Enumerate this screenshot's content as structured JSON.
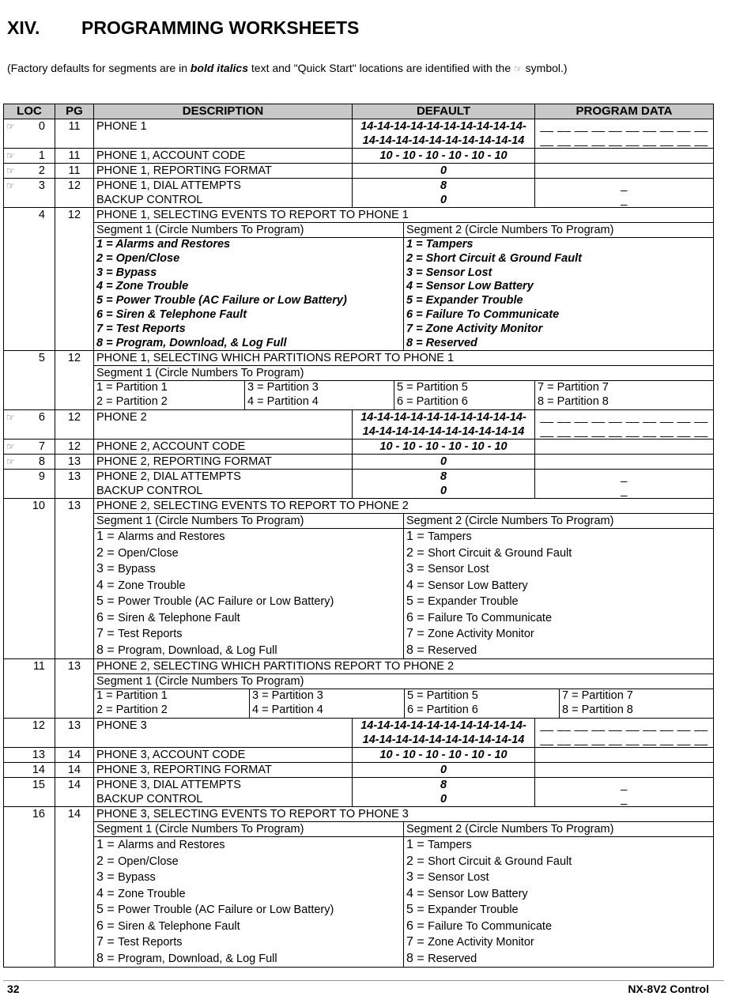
{
  "heading": {
    "number": "XIV.",
    "title": "PROGRAMMING WORKSHEETS"
  },
  "subtitle": {
    "part1": "(Factory defaults for segments are in ",
    "bold": "bold italics",
    "part2": " text and \"Quick Start\" locations are identified with the ",
    "symbol": "☞",
    "part3": " symbol.)"
  },
  "table": {
    "headers": [
      "LOC",
      "PG",
      "DESCRIPTION",
      "DEFAULT",
      "PROGRAM DATA"
    ],
    "quick_start_icon": "☞",
    "rows": [
      {
        "type": "simple",
        "quick": true,
        "loc": "0",
        "pg": "11",
        "desc": [
          "PHONE 1"
        ],
        "default": [
          "14-14-14-14-14-14-14-14-14-14-",
          "14-14-14-14-14-14-14-14-14-14"
        ],
        "program": [
          "__ __ __ __ __ __ __ __ __ __",
          "__ __ __ __ __ __ __ __ __ __"
        ]
      },
      {
        "type": "simple",
        "quick": true,
        "loc": "1",
        "pg": "11",
        "desc": [
          "PHONE 1, ACCOUNT CODE"
        ],
        "default": [
          "10 - 10 - 10 - 10 - 10 - 10"
        ],
        "program": [
          "_ _ _ _ _ _"
        ]
      },
      {
        "type": "simple",
        "quick": true,
        "loc": "2",
        "pg": "11",
        "desc": [
          "PHONE 1, REPORTING FORMAT"
        ],
        "default": [
          "0"
        ],
        "program": [
          "_"
        ]
      },
      {
        "type": "simple",
        "quick": true,
        "loc": "3",
        "pg": "12",
        "desc": [
          "PHONE 1, DIAL ATTEMPTS",
          "BACKUP CONTROL"
        ],
        "default": [
          "8",
          "0"
        ],
        "program": [
          "_",
          "_"
        ]
      },
      {
        "type": "events",
        "bold": true,
        "loc": "4",
        "pg": "12",
        "title": "PHONE 1, SELECTING EVENTS TO REPORT TO PHONE 1",
        "seg1": "Segment 1   (Circle Numbers To Program)",
        "seg2": "Segment 2   (Circle Numbers To Program)",
        "items1": [
          [
            "1 = ",
            "Alarms and Restores"
          ],
          [
            "2 = ",
            "Open/Close"
          ],
          [
            "3 = ",
            "Bypass"
          ],
          [
            "4 = ",
            "Zone Trouble"
          ],
          [
            "5 = ",
            "Power Trouble (AC Failure or Low Battery)"
          ],
          [
            "6 = ",
            "Siren & Telephone Fault"
          ],
          [
            "7 = ",
            "Test Reports"
          ],
          [
            "8 = ",
            "Program, Download, & Log Full"
          ]
        ],
        "items2": [
          [
            "1 = ",
            "Tampers"
          ],
          [
            "2 = ",
            "Short Circuit & Ground Fault"
          ],
          [
            "3 = ",
            "Sensor Lost"
          ],
          [
            "4 = ",
            "Sensor Low Battery"
          ],
          [
            "5 = ",
            "Expander Trouble"
          ],
          [
            "6 = ",
            "Failure To Communicate"
          ],
          [
            "7 = ",
            "Zone Activity Monitor"
          ],
          [
            "8 = ",
            "Reserved"
          ]
        ]
      },
      {
        "type": "partitions",
        "variant": "a",
        "loc": "5",
        "pg": "12",
        "title": "PHONE 1, SELECTING WHICH PARTITIONS REPORT TO PHONE 1",
        "seg1": "Segment 1     (Circle Numbers To Program)",
        "parts": [
          [
            "1 = Partition 1",
            "2 = Partition 2"
          ],
          [
            "3 = Partition 3",
            "4 = Partition 4"
          ],
          [
            "5 = Partition 5",
            "6 = Partition 6"
          ],
          [
            "7 = Partition 7",
            "8 = Partition 8"
          ]
        ]
      },
      {
        "type": "simple",
        "quick": true,
        "loc": "6",
        "pg": "12",
        "desc": [
          "PHONE 2"
        ],
        "default": [
          "14-14-14-14-14-14-14-14-14-14-",
          "14-14-14-14-14-14-14-14-14-14"
        ],
        "program": [
          "__ __ __ __ __ __ __ __ __ __",
          "__ __ __ __ __ __ __ __ __ __"
        ]
      },
      {
        "type": "simple",
        "quick": true,
        "loc": "7",
        "pg": "12",
        "desc": [
          "PHONE 2, ACCOUNT CODE"
        ],
        "default": [
          "10 - 10 - 10 - 10 - 10 - 10"
        ],
        "program": [
          "_ _ _ _ _ _"
        ]
      },
      {
        "type": "simple",
        "quick": true,
        "loc": "8",
        "pg": "13",
        "desc": [
          "PHONE 2, REPORTING FORMAT"
        ],
        "default": [
          "0"
        ],
        "program": [
          "_"
        ]
      },
      {
        "type": "simple",
        "quick": false,
        "loc": "9",
        "pg": "13",
        "desc": [
          "PHONE 2, DIAL ATTEMPTS",
          " BACKUP CONTROL"
        ],
        "default": [
          "8",
          "0"
        ],
        "program": [
          "_",
          "_"
        ]
      },
      {
        "type": "events",
        "bold": false,
        "loc": "10",
        "pg": "13",
        "title": "PHONE 2, SELECTING EVENTS TO REPORT TO PHONE 2",
        "seg1": "Segment 1   (Circle Numbers To Program)",
        "seg2": "Segment 2   (Circle Numbers To Program)",
        "items1": [
          [
            "1 = ",
            "Alarms and Restores"
          ],
          [
            "2 = ",
            "Open/Close"
          ],
          [
            "3 = ",
            "Bypass"
          ],
          [
            "4 = ",
            "Zone Trouble"
          ],
          [
            "5 = ",
            "Power Trouble (AC Failure or Low Battery)"
          ],
          [
            "6 = ",
            "Siren & Telephone Fault"
          ],
          [
            "7 = ",
            "Test Reports"
          ],
          [
            "8 = ",
            "Program, Download, & Log Full"
          ]
        ],
        "items2": [
          [
            "1 = ",
            "Tampers"
          ],
          [
            "2 = ",
            "Short Circuit & Ground Fault"
          ],
          [
            "3 = ",
            "Sensor Lost"
          ],
          [
            "4 = ",
            "Sensor Low Battery"
          ],
          [
            "5 = ",
            "Expander Trouble"
          ],
          [
            "6 = ",
            "Failure To Communicate"
          ],
          [
            "7 = ",
            "Zone Activity Monitor"
          ],
          [
            "8 = ",
            "Reserved"
          ]
        ]
      },
      {
        "type": "partitions",
        "variant": "b",
        "loc": "11",
        "pg": "13",
        "title": "PHONE 2, SELECTING WHICH PARTITIONS REPORT TO PHONE 2",
        "seg1": "Segment 1     (Circle Numbers To Program)",
        "parts": [
          [
            "1 = Partition 1",
            "2 = Partition 2"
          ],
          [
            "3 = Partition 3",
            "4 = Partition 4"
          ],
          [
            "5 = Partition 5",
            "6 = Partition 6"
          ],
          [
            "7 = Partition 7",
            "8 = Partition 8"
          ]
        ]
      },
      {
        "type": "simple",
        "quick": false,
        "loc": "12",
        "pg": "13",
        "desc": [
          "PHONE 3"
        ],
        "default": [
          "14-14-14-14-14-14-14-14-14-14-",
          "14-14-14-14-14-14-14-14-14-14"
        ],
        "program": [
          "__ __ __ __ __ __ __ __ __ __",
          "__ __ __ __ __ __ __ __ __ __"
        ]
      },
      {
        "type": "simple",
        "quick": false,
        "loc": "13",
        "pg": "14",
        "desc": [
          "PHONE 3, ACCOUNT CODE"
        ],
        "default": [
          "10 - 10 - 10 - 10 - 10 - 10"
        ],
        "program": [
          "_ _ _ _ _ _"
        ]
      },
      {
        "type": "simple",
        "quick": false,
        "loc": "14",
        "pg": "14",
        "desc": [
          "PHONE 3, REPORTING FORMAT"
        ],
        "default": [
          "0"
        ],
        "program": [
          "_"
        ]
      },
      {
        "type": "simple",
        "quick": false,
        "loc": "15",
        "pg": "14",
        "desc": [
          "PHONE 3, DIAL ATTEMPTS",
          "BACKUP CONTROL"
        ],
        "default": [
          "8",
          "0"
        ],
        "program": [
          "_",
          "_"
        ]
      },
      {
        "type": "events",
        "bold": false,
        "loc": "16",
        "pg": "14",
        "title": "PHONE 3, SELECTING EVENTS TO REPORT TO PHONE 3",
        "seg1": "Segment 1   (Circle Numbers To Program)",
        "seg2": "Segment 2   (Circle Numbers To Program)",
        "items1": [
          [
            "1 = ",
            "Alarms and Restores"
          ],
          [
            "2 = ",
            "Open/Close"
          ],
          [
            "3 = ",
            "Bypass"
          ],
          [
            "4 = ",
            "Zone Trouble"
          ],
          [
            "5 = ",
            "Power Trouble (AC Failure or Low Battery)"
          ],
          [
            "6 = ",
            "Siren & Telephone Fault"
          ],
          [
            "7 = ",
            "Test Reports"
          ],
          [
            "8 = ",
            "Program, Download, & Log Full"
          ]
        ],
        "items2": [
          [
            "1 = ",
            "Tampers"
          ],
          [
            "2 = ",
            "Short Circuit & Ground Fault"
          ],
          [
            "3 = ",
            "Sensor Lost"
          ],
          [
            "4 = ",
            "Sensor Low Battery"
          ],
          [
            "5 = ",
            "Expander Trouble"
          ],
          [
            "6 = ",
            "Failure To Communicate"
          ],
          [
            "7 = ",
            "Zone Activity Monitor"
          ],
          [
            "8 = ",
            "Reserved"
          ]
        ]
      }
    ]
  },
  "footer": {
    "page": "32",
    "product": "NX-8V2 Control"
  }
}
